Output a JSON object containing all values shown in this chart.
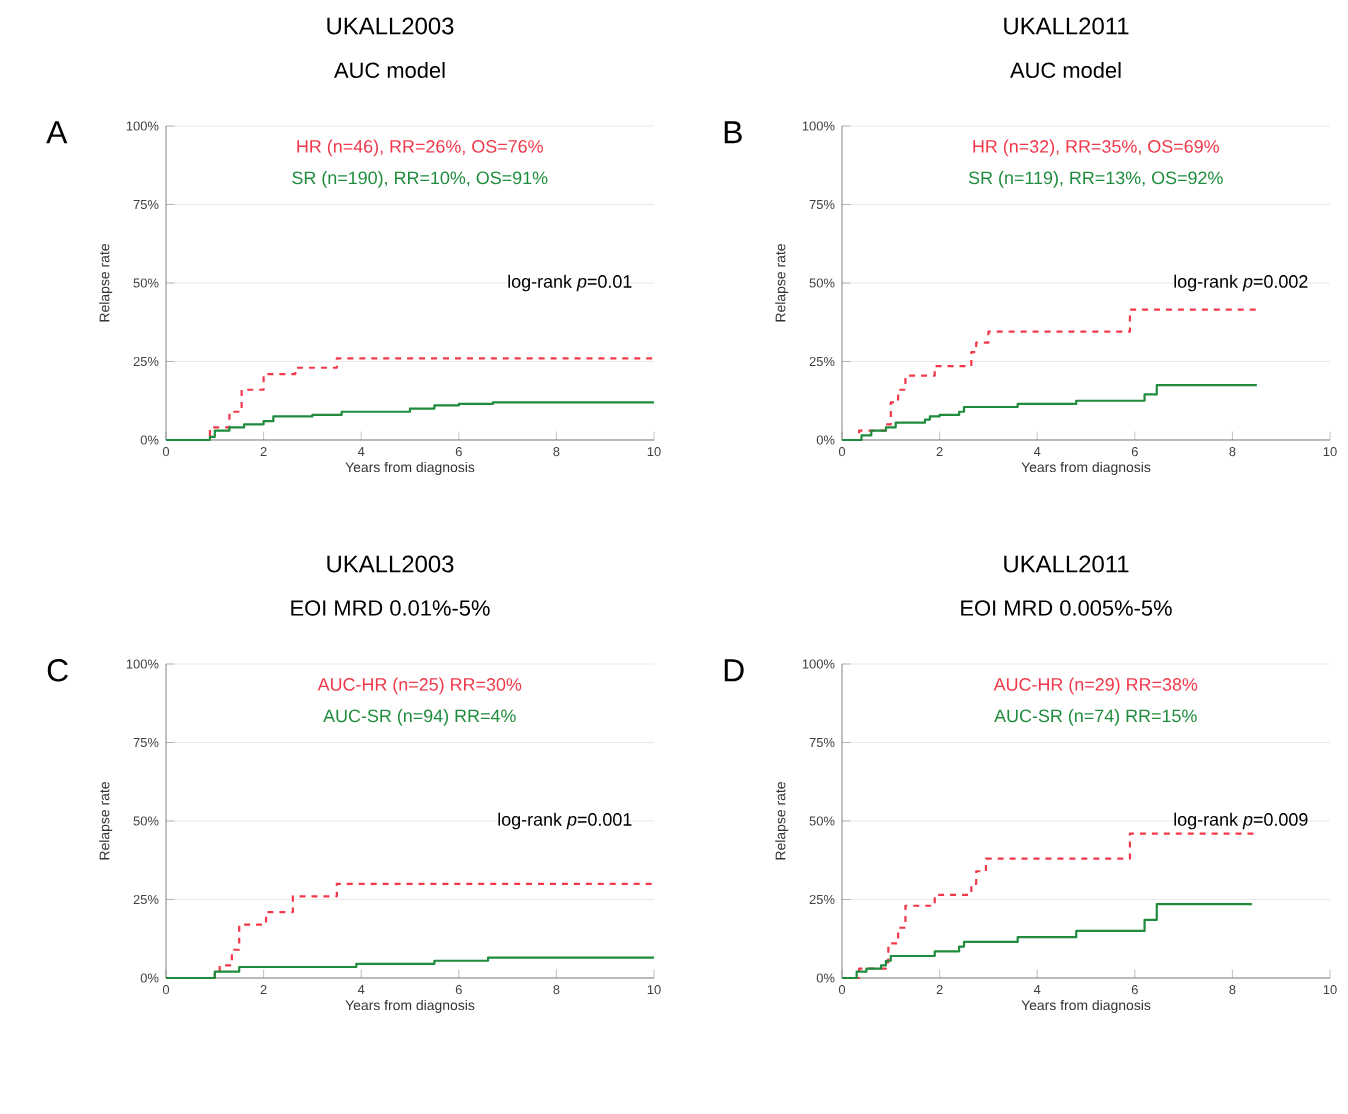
{
  "chart_data": [
    {
      "type": "step",
      "title": "UKALL2003",
      "subtitle": "AUC model",
      "xlabel": "Years from diagnosis",
      "ylabel": "Relapse rate",
      "annotations": [
        "A",
        "log-rank *p*=0.01"
      ],
      "xlim": [
        0,
        10
      ],
      "ylim": [
        0,
        100
      ],
      "xticks": [
        0,
        2,
        4,
        6,
        8,
        10
      ],
      "yticks": [
        {
          "value": 0,
          "label": "0%"
        },
        {
          "value": 25,
          "label": "25%"
        },
        {
          "value": 50,
          "label": "50%"
        },
        {
          "value": 75,
          "label": "75%"
        },
        {
          "value": 100,
          "label": "100%"
        }
      ],
      "grid": "y",
      "series": [
        {
          "name": "HR (n=46), RR=26%, OS=76%",
          "color": "#f0384a",
          "line_style": "dashed",
          "x": [
            0,
            0.9,
            1.3,
            1.55,
            2.0,
            2.65,
            3.5,
            10
          ],
          "values": [
            0,
            4,
            9,
            16,
            21,
            23,
            26,
            26
          ]
        },
        {
          "name": "SR (n=190), RR=10%, OS=91%",
          "color": "#1e8c3c",
          "line_style": "solid",
          "x": [
            0,
            0.9,
            1.0,
            1.3,
            1.6,
            2.0,
            2.2,
            3.0,
            3.6,
            5.0,
            5.5,
            6.0,
            6.7,
            10
          ],
          "values": [
            0,
            1,
            3,
            4,
            5,
            6,
            7.5,
            8,
            9,
            10,
            11,
            11.5,
            12,
            12
          ]
        }
      ]
    },
    {
      "type": "step",
      "title": "UKALL2011",
      "subtitle": "AUC model",
      "xlabel": "Years from diagnosis",
      "ylabel": "Relapse rate",
      "annotations": [
        "B",
        "log-rank *p*=0.002"
      ],
      "xlim": [
        0,
        10
      ],
      "ylim": [
        0,
        100
      ],
      "xticks": [
        0,
        2,
        4,
        6,
        8,
        10
      ],
      "yticks": [
        {
          "value": 0,
          "label": "0%"
        },
        {
          "value": 25,
          "label": "25%"
        },
        {
          "value": 50,
          "label": "50%"
        },
        {
          "value": 75,
          "label": "75%"
        },
        {
          "value": 100,
          "label": "100%"
        }
      ],
      "grid": "y",
      "series": [
        {
          "name": "HR (n=32), RR=35%, OS=69%",
          "color": "#f0384a",
          "line_style": "dashed",
          "x": [
            0,
            0.35,
            0.9,
            1.0,
            1.15,
            1.3,
            1.9,
            2.65,
            2.75,
            3.0,
            5.9,
            8.5
          ],
          "values": [
            0,
            3,
            5,
            12,
            16,
            20.5,
            23.5,
            28,
            31,
            34.5,
            41.5,
            41.5
          ]
        },
        {
          "name": "SR (n=119), RR=13%, OS=92%",
          "color": "#1e8c3c",
          "line_style": "solid",
          "x": [
            0,
            0.4,
            0.6,
            0.9,
            1.1,
            1.7,
            1.8,
            2.0,
            2.4,
            2.5,
            3.6,
            4.8,
            6.2,
            6.45,
            8.5
          ],
          "values": [
            0,
            1.5,
            3,
            4,
            5.5,
            6.5,
            7.5,
            8,
            9,
            10.5,
            11.5,
            12.5,
            14.5,
            17.5,
            17.5
          ]
        }
      ]
    },
    {
      "type": "step",
      "title": "UKALL2003",
      "subtitle": "EOI MRD 0.01%-5%",
      "xlabel": "Years from diagnosis",
      "ylabel": "Relapse rate",
      "annotations": [
        "C",
        "log-rank *p*=0.001"
      ],
      "xlim": [
        0,
        10
      ],
      "ylim": [
        0,
        100
      ],
      "xticks": [
        0,
        2,
        4,
        6,
        8,
        10
      ],
      "yticks": [
        {
          "value": 0,
          "label": "0%"
        },
        {
          "value": 25,
          "label": "25%"
        },
        {
          "value": 50,
          "label": "50%"
        },
        {
          "value": 75,
          "label": "75%"
        },
        {
          "value": 100,
          "label": "100%"
        }
      ],
      "grid": "y",
      "series": [
        {
          "name": "AUC-HR (n=25) RR=30%",
          "color": "#f0384a",
          "line_style": "dashed",
          "x": [
            0,
            1.0,
            1.1,
            1.35,
            1.5,
            2.05,
            2.6,
            3.5,
            10
          ],
          "values": [
            0,
            2,
            4,
            9,
            17,
            21,
            26,
            30,
            30
          ]
        },
        {
          "name": "AUC-SR (n=94) RR=4%",
          "color": "#1e8c3c",
          "line_style": "solid",
          "x": [
            0,
            1.0,
            1.5,
            3.9,
            5.5,
            6.6,
            10
          ],
          "values": [
            0,
            2,
            3.5,
            4.5,
            5.5,
            6.5,
            6.5
          ]
        }
      ]
    },
    {
      "type": "step",
      "title": "UKALL2011",
      "subtitle": "EOI MRD 0.005%-5%",
      "xlabel": "Years from diagnosis",
      "ylabel": "Relapse rate",
      "annotations": [
        "D",
        "log-rank *p*=0.009"
      ],
      "xlim": [
        0,
        10
      ],
      "ylim": [
        0,
        100
      ],
      "xticks": [
        0,
        2,
        4,
        6,
        8,
        10
      ],
      "yticks": [
        {
          "value": 0,
          "label": "0%"
        },
        {
          "value": 25,
          "label": "25%"
        },
        {
          "value": 50,
          "label": "50%"
        },
        {
          "value": 75,
          "label": "75%"
        },
        {
          "value": 100,
          "label": "100%"
        }
      ],
      "grid": "y",
      "series": [
        {
          "name": "AUC-HR (n=29) RR=38%",
          "color": "#f0384a",
          "line_style": "dashed",
          "x": [
            0,
            0.35,
            0.9,
            0.95,
            1.15,
            1.3,
            1.9,
            2.65,
            2.75,
            2.95,
            5.9,
            8.5
          ],
          "values": [
            0,
            3,
            5,
            11,
            16,
            23,
            26.5,
            30,
            34,
            38,
            46,
            46
          ]
        },
        {
          "name": "AUC-SR (n=74) RR=15%",
          "color": "#1e8c3c",
          "line_style": "solid",
          "x": [
            0,
            0.3,
            0.5,
            0.8,
            0.9,
            1.0,
            1.9,
            2.4,
            2.5,
            3.6,
            4.8,
            6.2,
            6.45,
            8.4
          ],
          "values": [
            0,
            2,
            3,
            4,
            5.5,
            7,
            8.5,
            10,
            11.5,
            13,
            15,
            18.5,
            23.5,
            23.5
          ]
        }
      ]
    }
  ]
}
